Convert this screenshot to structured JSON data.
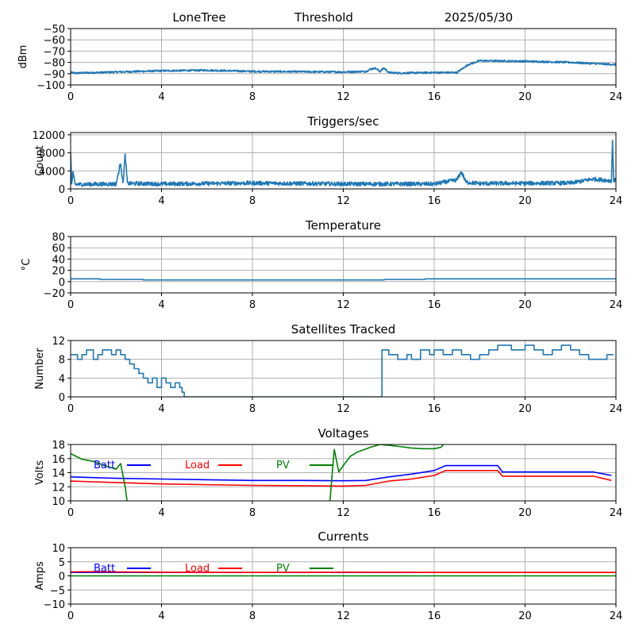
{
  "header": {
    "site": "LoneTree",
    "mode": "Threshold",
    "date": "2025/05/30"
  },
  "chart_data": [
    {
      "type": "line",
      "title": "",
      "ylabel": "dBm",
      "xlim": [
        0,
        24
      ],
      "xticks": [
        0,
        4,
        8,
        12,
        16,
        20,
        24
      ],
      "ylim": [
        -100,
        -50
      ],
      "yticks": [
        -100,
        -90,
        -80,
        -70,
        -60,
        -50
      ],
      "ytick_labels": [
        "−100",
        "−90",
        "−80",
        "−70",
        "−60",
        "−50"
      ],
      "grid": true,
      "legend": "none",
      "series": [
        {
          "color": "#1f77b4",
          "noise": 0.8,
          "x": [
            0,
            0.2,
            3,
            4,
            6,
            8,
            12,
            13,
            13.2,
            13.4,
            13.6,
            13.8,
            14,
            14.5,
            16,
            17,
            17.5,
            18,
            20,
            22,
            23,
            24
          ],
          "y": [
            -89,
            -89.5,
            -88,
            -87.5,
            -87,
            -88,
            -88.5,
            -88,
            -86,
            -85,
            -88,
            -85,
            -89,
            -89.5,
            -89,
            -89,
            -82,
            -78.5,
            -79,
            -80,
            -81,
            -82
          ]
        }
      ]
    },
    {
      "type": "line",
      "title": "Triggers/sec",
      "ylabel": "Count",
      "xlim": [
        0,
        24
      ],
      "xticks": [
        0,
        4,
        8,
        12,
        16,
        20,
        24
      ],
      "ylim": [
        0,
        12500
      ],
      "yticks": [
        0,
        4000,
        8000,
        12000
      ],
      "ytick_labels": [
        "0",
        "4000",
        "8000",
        "12000"
      ],
      "grid": true,
      "legend": "none",
      "series": [
        {
          "color": "#1f77b4",
          "noise": 450,
          "x": [
            0,
            0.05,
            0.1,
            0.2,
            2,
            2.2,
            2.3,
            2.4,
            2.5,
            3,
            4,
            8,
            12,
            16,
            17,
            17.2,
            17.4,
            18,
            22,
            23,
            23.8,
            23.85,
            23.9,
            24
          ],
          "y": [
            8000,
            1000,
            3500,
            1000,
            1100,
            5800,
            1200,
            7500,
            1200,
            1200,
            1100,
            1300,
            1100,
            1100,
            2000,
            3800,
            1500,
            1200,
            1300,
            2200,
            1800,
            10500,
            1800,
            2000
          ]
        }
      ]
    },
    {
      "type": "line",
      "title": "Temperature",
      "ylabel": "°C",
      "xlim": [
        0,
        24
      ],
      "xticks": [
        0,
        4,
        8,
        12,
        16,
        20,
        24
      ],
      "ylim": [
        -20,
        80
      ],
      "yticks": [
        -20,
        0,
        20,
        40,
        60,
        80
      ],
      "ytick_labels": [
        "−20",
        "0",
        "20",
        "40",
        "60",
        "80"
      ],
      "grid": true,
      "legend": "none",
      "series": [
        {
          "color": "#1f77b4",
          "noise": 0,
          "step": true,
          "x": [
            0,
            1.3,
            3.2,
            13.8,
            15.6,
            24
          ],
          "y": [
            5,
            4,
            3,
            4,
            5,
            5
          ]
        }
      ]
    },
    {
      "type": "line",
      "title": "Satellites Tracked",
      "ylabel": "Number",
      "xlim": [
        0,
        24
      ],
      "xticks": [
        0,
        4,
        8,
        12,
        16,
        20,
        24
      ],
      "ylim": [
        0,
        12
      ],
      "yticks": [
        0,
        4,
        8,
        12
      ],
      "ytick_labels": [
        "0",
        "4",
        "8",
        "12"
      ],
      "grid": true,
      "legend": "none",
      "series": [
        {
          "color": "#1f77b4",
          "noise": 0,
          "step": true,
          "x": [
            0,
            0.3,
            0.5,
            0.7,
            1,
            1.2,
            1.4,
            1.8,
            2,
            2.2,
            2.4,
            2.6,
            2.8,
            3,
            3.2,
            3.4,
            3.6,
            3.8,
            4,
            4.2,
            4.4,
            4.6,
            4.8,
            4.9,
            5,
            13.5,
            13.7,
            14,
            14.4,
            14.8,
            15,
            15.4,
            15.8,
            16,
            16.4,
            16.8,
            17.2,
            17.6,
            18,
            18.4,
            18.8,
            19.4,
            20,
            20.4,
            20.8,
            21.2,
            21.6,
            22,
            22.4,
            22.8,
            23.2,
            23.6,
            23.9
          ],
          "y": [
            9,
            8,
            9,
            10,
            8,
            9,
            10,
            9,
            10,
            9,
            8,
            7,
            6,
            5,
            4,
            3,
            4,
            2,
            4,
            3,
            2,
            3,
            2,
            1,
            0,
            0,
            10,
            9,
            8,
            9,
            8,
            10,
            9,
            10,
            9,
            10,
            9,
            8,
            9,
            10,
            11,
            10,
            11,
            10,
            9,
            10,
            11,
            10,
            9,
            8,
            8,
            9,
            9
          ]
        }
      ]
    },
    {
      "type": "line",
      "title": "Voltages",
      "ylabel": "Volts",
      "xlim": [
        0,
        24
      ],
      "xticks": [
        0,
        4,
        8,
        12,
        16,
        20,
        24
      ],
      "ylim": [
        10,
        18
      ],
      "yticks": [
        10,
        12,
        14,
        16,
        18
      ],
      "ytick_labels": [
        "10",
        "12",
        "14",
        "16",
        "18"
      ],
      "grid": true,
      "legend": "top-left",
      "series": [
        {
          "name": "Batt",
          "color": "#0000ff",
          "noise": 0,
          "x": [
            0,
            1,
            2,
            4,
            8,
            10,
            12,
            13,
            14,
            15,
            16,
            16.5,
            18.8,
            19,
            22,
            23,
            23.8
          ],
          "y": [
            13.4,
            13.3,
            13.2,
            13.1,
            12.9,
            12.9,
            12.85,
            12.9,
            13.4,
            13.8,
            14.3,
            15.0,
            15.0,
            14.1,
            14.1,
            14.1,
            13.6
          ]
        },
        {
          "name": "Load",
          "color": "#ff0000",
          "noise": 0,
          "x": [
            0,
            1,
            4,
            8,
            10,
            12,
            13,
            14,
            15,
            16,
            16.5,
            18.8,
            19,
            22,
            23,
            23.8
          ],
          "y": [
            12.8,
            12.7,
            12.4,
            12.2,
            12.15,
            12.1,
            12.2,
            12.8,
            13.1,
            13.6,
            14.3,
            14.3,
            13.5,
            13.5,
            13.5,
            12.9
          ]
        },
        {
          "name": "PV",
          "color": "#008000",
          "noise": 0,
          "x": [
            0,
            0.5,
            1,
            1.5,
            2,
            2.2,
            2.4,
            2.5,
            11.4,
            11.6,
            11.8,
            12,
            12.3,
            12.6,
            13.2,
            13.6,
            14,
            15,
            15.5,
            16,
            16.3,
            16.4,
            16.5
          ],
          "y": [
            16.7,
            15.9,
            15.6,
            15.0,
            14.5,
            15.3,
            12.0,
            9.5,
            9.5,
            17.3,
            14.1,
            15.0,
            16.3,
            16.9,
            17.6,
            18.0,
            17.9,
            17.5,
            17.4,
            17.4,
            17.6,
            18.0,
            18.4
          ]
        }
      ]
    },
    {
      "type": "line",
      "title": "Currents",
      "ylabel": "Amps",
      "xlim": [
        0,
        24
      ],
      "xticks": [
        0,
        4,
        8,
        12,
        16,
        20,
        24
      ],
      "ylim": [
        -10,
        10
      ],
      "yticks": [
        -10,
        -5,
        0,
        5,
        10
      ],
      "ytick_labels": [
        "−10",
        "−5",
        "0",
        "5",
        "10"
      ],
      "grid": true,
      "legend": "top-left",
      "series": [
        {
          "name": "Batt",
          "color": "#0000ff",
          "noise": 0,
          "x": [
            0,
            24
          ],
          "y": [
            1.2,
            1.2
          ]
        },
        {
          "name": "Load",
          "color": "#ff0000",
          "noise": 0,
          "x": [
            0,
            1,
            4,
            8,
            12,
            16,
            20,
            24
          ],
          "y": [
            1.4,
            1.5,
            1.3,
            1.2,
            1.3,
            1.2,
            1.2,
            1.2
          ]
        },
        {
          "name": "PV",
          "color": "#008000",
          "noise": 0,
          "x": [
            0,
            24
          ],
          "y": [
            0.0,
            0.0
          ]
        }
      ]
    }
  ]
}
